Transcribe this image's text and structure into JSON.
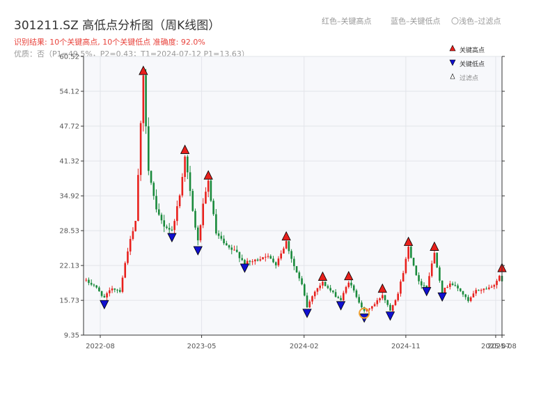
{
  "header": {
    "title": "301211.SZ 高低点分析图（周K线图）",
    "result": "识别结果: 10个关键高点, 10个关键低点   准确度: 92.0%",
    "quality": "优质：否（P1=49.5%，P2=0.43；T1=2024-07-12 P1=13.63）"
  },
  "legend_top": {
    "red": "红色–关键高点",
    "blue": "蓝色–关键低点",
    "light": "〇浅色–过滤点"
  },
  "legend": {
    "high": "关键高点",
    "low": "关键低点",
    "filtered": "过滤点"
  },
  "colors": {
    "up": "#e8201c",
    "down": "#1a8a3c",
    "high_marker": "#e8201c",
    "low_marker": "#1010d0",
    "filtered": "#f0a030",
    "plot_bg": "#f7f8fb",
    "grid": "#e2e4ea"
  },
  "chart_data": {
    "type": "candlestick",
    "x_range": [
      "2022-06-17",
      "2025-07-18"
    ],
    "ylim": [
      9.35,
      60.52
    ],
    "y_ticks": [
      "60.52",
      "54.12",
      "47.72",
      "41.32",
      "34.92",
      "28.53",
      "22.13",
      "15.73",
      "9.35"
    ],
    "x_ticks": [
      {
        "date": "2022-08-01",
        "label": "2022-08"
      },
      {
        "date": "2023-05-01",
        "label": "2023-05"
      },
      {
        "date": "2024-02-01",
        "label": "2024-02"
      },
      {
        "date": "2024-11-01",
        "label": "2024-11"
      },
      {
        "date": "2025-07-01",
        "label": "2025-07"
      },
      {
        "date": "2025-07-18",
        "label": "2025-08"
      }
    ],
    "price_path": [
      [
        "2022-06-17",
        19.5
      ],
      [
        "2022-07-15",
        18.5
      ],
      [
        "2022-08-12",
        16.2
      ],
      [
        "2022-09-02",
        18.0
      ],
      [
        "2022-09-23",
        17.5
      ],
      [
        "2022-10-14",
        25.0
      ],
      [
        "2022-11-04",
        30.0
      ],
      [
        "2022-11-25",
        56.5
      ],
      [
        "2022-12-09",
        40.0
      ],
      [
        "2022-12-30",
        32.0
      ],
      [
        "2023-01-20",
        29.5
      ],
      [
        "2023-02-10",
        28.5
      ],
      [
        "2023-03-03",
        35.0
      ],
      [
        "2023-03-17",
        42.5
      ],
      [
        "2023-04-07",
        32.0
      ],
      [
        "2023-04-21",
        26.5
      ],
      [
        "2023-05-05",
        33.0
      ],
      [
        "2023-05-19",
        37.5
      ],
      [
        "2023-06-09",
        28.0
      ],
      [
        "2023-07-07",
        25.5
      ],
      [
        "2023-08-04",
        24.5
      ],
      [
        "2023-08-25",
        22.5
      ],
      [
        "2023-09-22",
        23.0
      ],
      [
        "2023-10-20",
        24.0
      ],
      [
        "2023-11-17",
        22.5
      ],
      [
        "2023-12-15",
        26.5
      ],
      [
        "2024-01-05",
        22.0
      ],
      [
        "2024-01-26",
        18.5
      ],
      [
        "2024-02-09",
        14.5
      ],
      [
        "2024-03-01",
        17.5
      ],
      [
        "2024-03-22",
        19.0
      ],
      [
        "2024-04-19",
        17.0
      ],
      [
        "2024-05-10",
        15.8
      ],
      [
        "2024-05-31",
        19.2
      ],
      [
        "2024-06-21",
        16.5
      ],
      [
        "2024-07-12",
        13.63
      ],
      [
        "2024-08-09",
        15.0
      ],
      [
        "2024-08-30",
        16.8
      ],
      [
        "2024-09-20",
        14.0
      ],
      [
        "2024-10-11",
        17.0
      ],
      [
        "2024-10-25",
        21.0
      ],
      [
        "2024-11-08",
        25.5
      ],
      [
        "2024-12-06",
        19.0
      ],
      [
        "2024-12-27",
        18.2
      ],
      [
        "2025-01-17",
        24.5
      ],
      [
        "2025-02-07",
        17.2
      ],
      [
        "2025-02-28",
        19.0
      ],
      [
        "2025-03-28",
        17.5
      ],
      [
        "2025-04-18",
        15.5
      ],
      [
        "2025-05-09",
        17.5
      ],
      [
        "2025-05-30",
        17.8
      ],
      [
        "2025-06-20",
        18.2
      ],
      [
        "2025-07-11",
        20.0
      ],
      [
        "2025-07-18",
        19.0
      ]
    ],
    "key_highs": [
      {
        "date": "2022-11-25",
        "value": 56.8
      },
      {
        "date": "2023-03-17",
        "value": 42.3
      },
      {
        "date": "2023-05-19",
        "value": 37.6
      },
      {
        "date": "2023-12-15",
        "value": 26.4
      },
      {
        "date": "2024-03-22",
        "value": 19.0
      },
      {
        "date": "2024-05-31",
        "value": 19.1
      },
      {
        "date": "2024-08-30",
        "value": 16.8
      },
      {
        "date": "2024-11-08",
        "value": 25.4
      },
      {
        "date": "2025-01-17",
        "value": 24.5
      },
      {
        "date": "2025-07-18",
        "value": 20.6
      }
    ],
    "key_lows": [
      {
        "date": "2022-08-12",
        "value": 16.1
      },
      {
        "date": "2023-02-10",
        "value": 28.4
      },
      {
        "date": "2023-04-21",
        "value": 26.0
      },
      {
        "date": "2023-08-25",
        "value": 22.8
      },
      {
        "date": "2024-02-09",
        "value": 14.5
      },
      {
        "date": "2024-05-10",
        "value": 15.9
      },
      {
        "date": "2024-07-12",
        "value": 13.63
      },
      {
        "date": "2024-09-20",
        "value": 14.0
      },
      {
        "date": "2024-12-27",
        "value": 18.5
      },
      {
        "date": "2025-02-07",
        "value": 17.5
      }
    ],
    "filtered_points": [
      {
        "date": "2024-07-12",
        "value": 13.63
      }
    ]
  }
}
